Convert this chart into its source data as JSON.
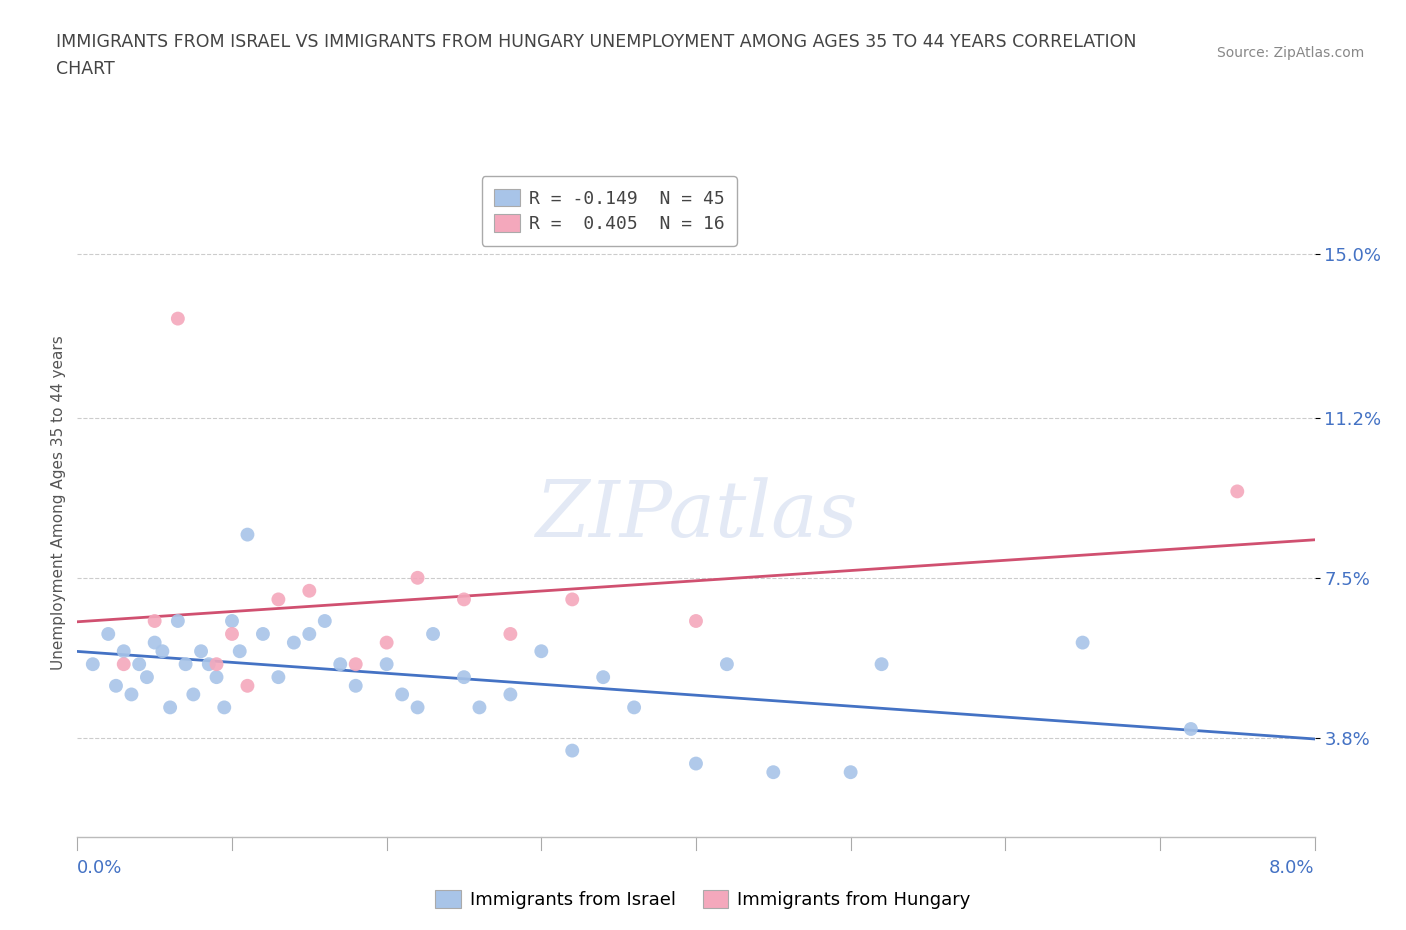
{
  "title_line1": "IMMIGRANTS FROM ISRAEL VS IMMIGRANTS FROM HUNGARY UNEMPLOYMENT AMONG AGES 35 TO 44 YEARS CORRELATION",
  "title_line2": "CHART",
  "source_text": "Source: ZipAtlas.com",
  "ylabel": "Unemployment Among Ages 35 to 44 years",
  "ytick_labels": [
    "3.8%",
    "7.5%",
    "11.2%",
    "15.0%"
  ],
  "ytick_values": [
    3.8,
    7.5,
    11.2,
    15.0
  ],
  "xlim": [
    0.0,
    8.0
  ],
  "ylim": [
    1.5,
    17.0
  ],
  "legend_israel": "R = -0.149  N = 45",
  "legend_hungary": "R =  0.405  N = 16",
  "israel_color": "#a8c4e8",
  "hungary_color": "#f4a8bc",
  "israel_line_color": "#4472c4",
  "hungary_line_color": "#d05070",
  "tick_color": "#4472c4",
  "israel_x": [
    0.1,
    0.2,
    0.25,
    0.3,
    0.35,
    0.4,
    0.45,
    0.5,
    0.55,
    0.6,
    0.65,
    0.7,
    0.75,
    0.8,
    0.85,
    0.9,
    0.95,
    1.0,
    1.05,
    1.1,
    1.2,
    1.3,
    1.4,
    1.5,
    1.6,
    1.7,
    1.8,
    2.0,
    2.1,
    2.2,
    2.3,
    2.5,
    2.6,
    2.8,
    3.0,
    3.2,
    3.4,
    3.6,
    4.0,
    4.2,
    4.5,
    5.0,
    5.2,
    6.5,
    7.2
  ],
  "israel_y": [
    5.5,
    6.2,
    5.0,
    5.8,
    4.8,
    5.5,
    5.2,
    6.0,
    5.8,
    4.5,
    6.5,
    5.5,
    4.8,
    5.8,
    5.5,
    5.2,
    4.5,
    6.5,
    5.8,
    8.5,
    6.2,
    5.2,
    6.0,
    6.2,
    6.5,
    5.5,
    5.0,
    5.5,
    4.8,
    4.5,
    6.2,
    5.2,
    4.5,
    4.8,
    5.8,
    3.5,
    5.2,
    4.5,
    3.2,
    5.5,
    3.0,
    3.0,
    5.5,
    6.0,
    4.0
  ],
  "hungary_x": [
    0.3,
    0.5,
    0.65,
    0.9,
    1.0,
    1.1,
    1.3,
    1.5,
    1.8,
    2.0,
    2.2,
    2.5,
    2.8,
    3.2,
    4.0,
    7.5
  ],
  "hungary_y": [
    5.5,
    6.5,
    13.5,
    5.5,
    6.2,
    5.0,
    7.0,
    7.2,
    5.5,
    6.0,
    7.5,
    7.0,
    6.2,
    7.0,
    6.5,
    9.5
  ],
  "bottom_legend_israel": "Immigrants from Israel",
  "bottom_legend_hungary": "Immigrants from Hungary"
}
